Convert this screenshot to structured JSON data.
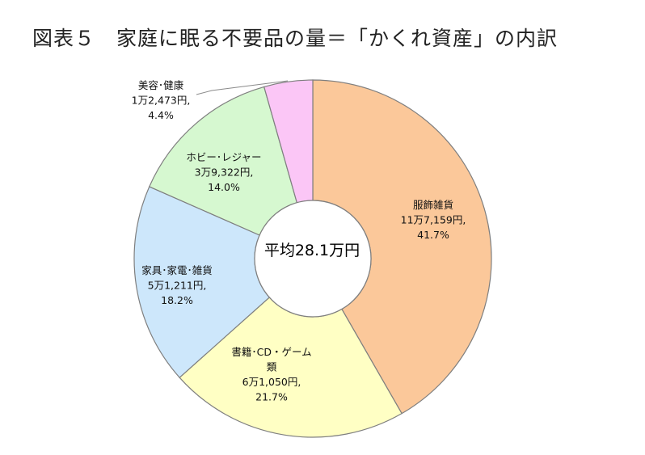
{
  "title": "図表５　家庭に眠る不要品の量＝「かくれ資産」の内訳",
  "chart_data": {
    "type": "pie",
    "style": "donut",
    "center_label": "平均28.1万円",
    "colors": [
      "#fbc89a",
      "#ffffc4",
      "#cde7fb",
      "#d6f8d0",
      "#fbc6f6"
    ],
    "slices": [
      {
        "label": "服飾雑貨",
        "amount": "11万7,159円,",
        "percent": 41.7,
        "percent_label": "41.7%"
      },
      {
        "label": "書籍・CD・ゲーム類",
        "label_lines": [
          "書籍･CD・ゲーム",
          "類"
        ],
        "amount": "6万1,050円,",
        "percent": 21.7,
        "percent_label": "21.7%"
      },
      {
        "label": "家具・家電・雑貨",
        "label_lines": [
          "家具･家電･雑貨"
        ],
        "amount": "5万1,211円,",
        "percent": 18.2,
        "percent_label": "18.2%"
      },
      {
        "label": "ホビー・レジャー",
        "label_lines": [
          "ホビー･レジャー"
        ],
        "amount": "3万9,322円,",
        "percent": 14.0,
        "percent_label": "14.0%"
      },
      {
        "label": "美容・健康",
        "label_lines": [
          "美容･健康"
        ],
        "amount": "1万2,473円,",
        "percent": 4.4,
        "percent_label": "4.4%"
      }
    ]
  }
}
